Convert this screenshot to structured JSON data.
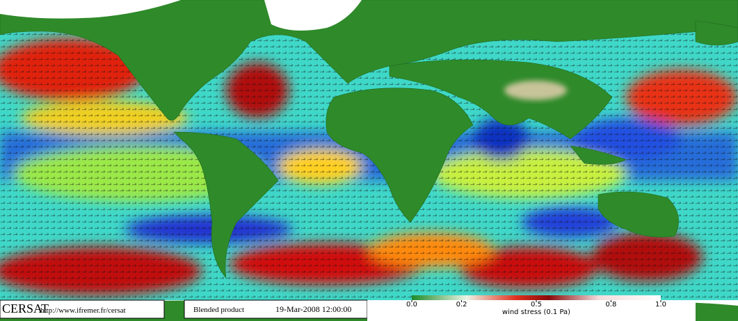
{
  "footer": {
    "logo": "CERSAT",
    "url": "http://www.ifremer.fr/cersat",
    "product": "Blended product",
    "date": "19-Mar-2008 12:00:00"
  },
  "colorbar": {
    "ticks": [
      {
        "value": 0,
        "label": "0.0"
      },
      0.2,
      0.5,
      0.8,
      {
        "value": 1,
        "label": "1.0"
      }
    ],
    "label": "wind stress (0.1 Pa)"
  }
}
